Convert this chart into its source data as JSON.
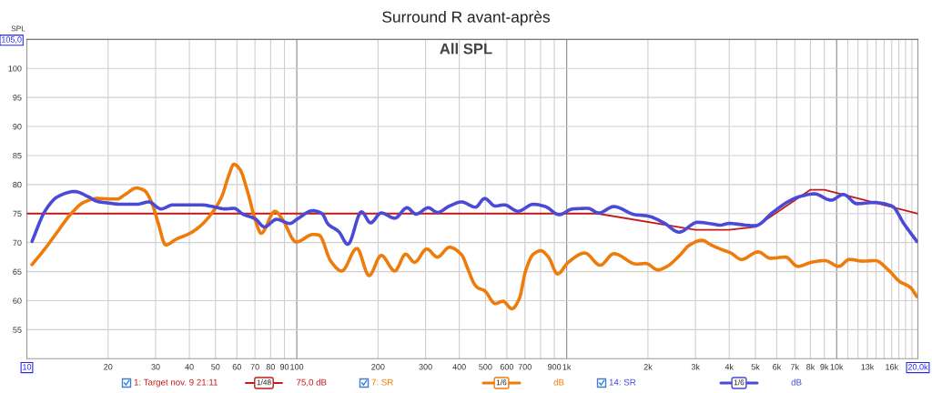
{
  "chart_data": {
    "type": "line",
    "title": "Surround R avant-après",
    "ylabel": "SPL",
    "annotations": [
      "All SPL",
      "1/48",
      "75,0 dB",
      "1/6",
      "dB",
      "1/6",
      "dB"
    ],
    "log": "x",
    "xlim": [
      10,
      20000
    ],
    "xticks": [
      10,
      20,
      30,
      40,
      50,
      60,
      70,
      80,
      90,
      100,
      200,
      300,
      400,
      500,
      600,
      700,
      {
        "value": 800,
        "label": null
      },
      900,
      {
        "value": 1000,
        "label": "1k"
      },
      {
        "value": 2000,
        "label": "2k"
      },
      {
        "value": 3000,
        "label": "3k"
      },
      {
        "value": 4000,
        "label": "4k"
      },
      {
        "value": 5000,
        "label": "5k"
      },
      {
        "value": 6000,
        "label": "6k"
      },
      {
        "value": 7000,
        "label": "7k"
      },
      {
        "value": 8000,
        "label": "8k"
      },
      {
        "value": 9000,
        "label": "9k"
      },
      {
        "value": 10000,
        "label": "10k"
      },
      {
        "value": 11000,
        "label": null
      },
      {
        "value": 12000,
        "label": null
      },
      {
        "value": 13000,
        "label": "13k"
      },
      {
        "value": 14000,
        "label": null
      },
      {
        "value": 15000,
        "label": null
      },
      {
        "value": 16000,
        "label": "16k"
      },
      {
        "value": 17000,
        "label": null
      },
      {
        "value": 18000,
        "label": null
      },
      {
        "value": 19000,
        "label": null
      },
      {
        "value": 20000,
        "label": "20,0k"
      }
    ],
    "ylim": [
      50,
      105
    ],
    "yticks": [
      55,
      60,
      65,
      70,
      75,
      80,
      85,
      90,
      95,
      100,
      {
        "value": 105,
        "label": "105,0"
      }
    ],
    "grid": true,
    "legend": "bottom",
    "line_style": "solid",
    "series": [
      {
        "name": "1: Target nov. 9 21:11",
        "color": "#c41a1a",
        "x": [
          10,
          1300,
          3000,
          4000,
          5000,
          8000,
          9000,
          20000
        ],
        "values": [
          75,
          75,
          72.2,
          72.2,
          72.7,
          79.1,
          79.1,
          75
        ]
      },
      {
        "name": "7: SR",
        "color": "#ef7b0b",
        "x": [
          10.45,
          11.7,
          13,
          14.6,
          16.2,
          18.2,
          20.7,
          21.6,
          23,
          25.5,
          27.2,
          29,
          30.6,
          32.7,
          35.8,
          40.2,
          44,
          48.7,
          52.7,
          56.2,
          58.5,
          61.6,
          65.8,
          70.1,
          73.8,
          83,
          88.5,
          99.5,
          114.8,
          120.8,
          134,
          146.7,
          167,
          185.3,
          205.5,
          230.8,
          253,
          273,
          303,
          331.7,
          368,
          408,
          430,
          453,
          465.6,
          496.5,
          543.6,
          580,
          627,
          668,
          704,
          752,
          802,
          856,
          925,
          1013,
          1168,
          1330,
          1495,
          1816,
          1963,
          2178,
          2354,
          2609,
          2857,
          3169,
          3427,
          3751,
          4056,
          4442,
          5119,
          5683,
          6470,
          7178,
          8064,
          9057,
          10180,
          11150,
          12520,
          13900,
          15620,
          17110,
          18730,
          19830
        ],
        "values": [
          66.2,
          69.0,
          71.9,
          75.0,
          76.9,
          77.6,
          77.5,
          77.5,
          78.2,
          79.4,
          79.0,
          76.9,
          73.5,
          69.6,
          70.6,
          71.6,
          72.9,
          75.2,
          77.9,
          81.8,
          83.5,
          82.6,
          78.7,
          74.0,
          71.6,
          75.4,
          74.0,
          70.1,
          71.4,
          71.3,
          66.7,
          65.1,
          69.0,
          64.3,
          67.8,
          65.1,
          68.0,
          66.6,
          68.9,
          67.5,
          69.2,
          67.9,
          65.5,
          63.0,
          62.3,
          61.7,
          59.5,
          59.9,
          58.6,
          60.4,
          65.1,
          68.0,
          68.6,
          67.5,
          64.6,
          66.6,
          68.2,
          66.1,
          68.1,
          66.3,
          66.4,
          65.3,
          65.9,
          67.7,
          69.6,
          70.4,
          69.6,
          68.8,
          68.2,
          67.1,
          68.4,
          67.3,
          67.5,
          65.9,
          66.6,
          66.9,
          65.9,
          67.1,
          66.8,
          66.9,
          65.2,
          63.3,
          62.3,
          60.7
        ]
      },
      {
        "name": "14: SR",
        "color": "#4a4ad6",
        "x": [
          10.45,
          11.7,
          13,
          15,
          16.9,
          18.2,
          20.2,
          22.4,
          25.5,
          28.3,
          31.4,
          34.8,
          39.6,
          44,
          50.1,
          54.1,
          58.5,
          63.2,
          70.1,
          75.9,
          84.1,
          94.4,
          100,
          114.8,
          124,
          130.5,
          143,
          154.5,
          173.7,
          187.7,
          205.5,
          230.8,
          256,
          276.6,
          307,
          331.7,
          368,
          408,
          459,
          496.5,
          543.6,
          587.5,
          660,
          752,
          834,
          937,
          1053,
          1199,
          1313,
          1495,
          1792,
          1987,
          2291,
          2609,
          3050,
          3473,
          3705,
          4001,
          4616,
          4989,
          5833,
          6640,
          7267,
          8272,
          9544,
          10590,
          11890,
          13710,
          16030,
          17780,
          19830
        ],
        "values": [
          70.2,
          75.5,
          77.9,
          78.8,
          77.9,
          77.1,
          76.8,
          76.6,
          76.6,
          77.0,
          75.8,
          76.5,
          76.5,
          76.5,
          76.1,
          75.8,
          75.9,
          74.9,
          74.1,
          72.7,
          74.0,
          73.3,
          74.0,
          75.5,
          75.0,
          73.2,
          71.9,
          69.7,
          75.3,
          73.4,
          75.1,
          74.2,
          76.0,
          74.9,
          76.0,
          75.2,
          76.3,
          77.0,
          76.1,
          77.6,
          76.3,
          76.5,
          75.4,
          76.6,
          76.2,
          74.8,
          75.8,
          75.9,
          75.1,
          76.2,
          74.8,
          74.6,
          73.4,
          71.8,
          73.5,
          73.2,
          73.0,
          73.3,
          73.0,
          72.9,
          75.3,
          77.1,
          77.9,
          78.4,
          77.3,
          78.3,
          76.7,
          76.9,
          76.3,
          73.2,
          70.2
        ]
      }
    ]
  }
}
